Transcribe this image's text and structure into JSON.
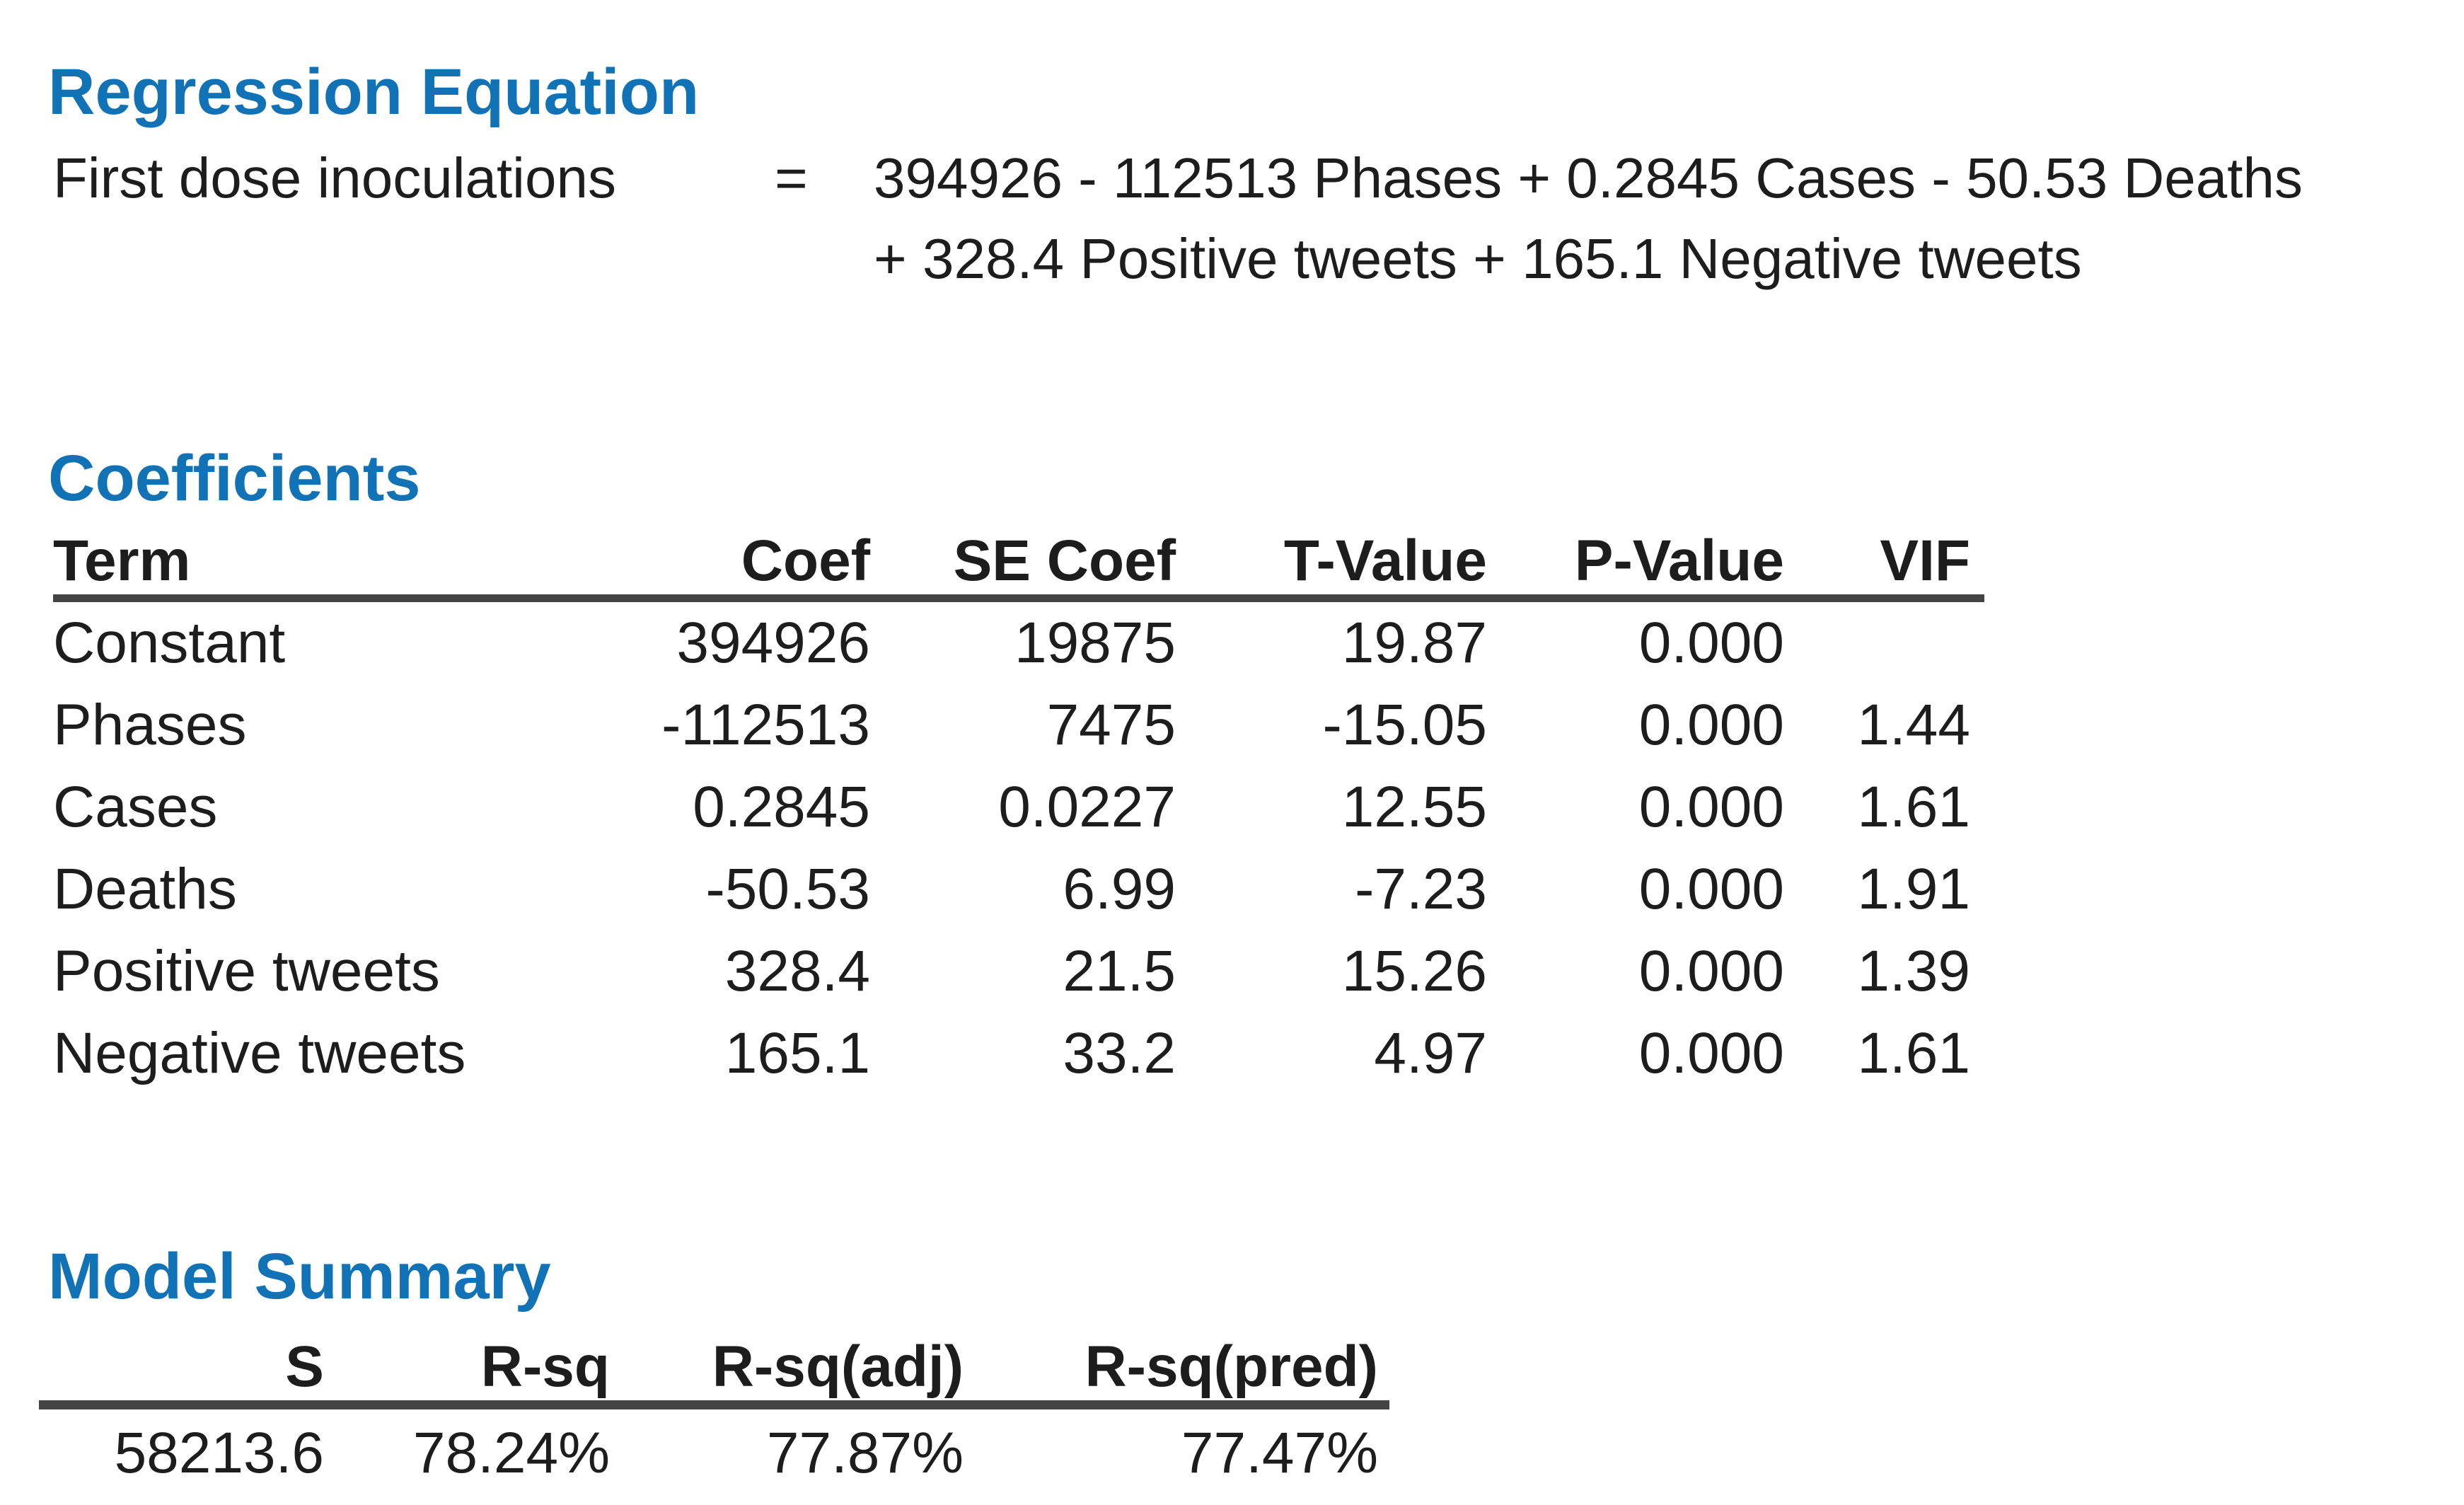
{
  "colors": {
    "heading_blue": "#1173b6",
    "body_text": "#1d1d1d",
    "table_rule": "#444444",
    "background": "#ffffff"
  },
  "regression_equation": {
    "title": "Regression Equation",
    "response_label": "First dose inoculations",
    "equals_sign": "=",
    "line1": "394926 - 112513 Phases + 0.2845 Cases - 50.53 Deaths",
    "line2": "+ 328.4 Positive tweets + 165.1 Negative tweets"
  },
  "coefficients": {
    "title": "Coefficients",
    "columns": [
      "Term",
      "Coef",
      "SE Coef",
      "T-Value",
      "P-Value",
      "VIF"
    ],
    "rows": [
      {
        "term": "Constant",
        "coef": "394926",
        "se_coef": "19875",
        "t_value": "19.87",
        "p_value": "0.000",
        "vif": ""
      },
      {
        "term": "Phases",
        "coef": "-112513",
        "se_coef": "7475",
        "t_value": "-15.05",
        "p_value": "0.000",
        "vif": "1.44"
      },
      {
        "term": "Cases",
        "coef": "0.2845",
        "se_coef": "0.0227",
        "t_value": "12.55",
        "p_value": "0.000",
        "vif": "1.61"
      },
      {
        "term": "Deaths",
        "coef": "-50.53",
        "se_coef": "6.99",
        "t_value": "-7.23",
        "p_value": "0.000",
        "vif": "1.91"
      },
      {
        "term": "Positive tweets",
        "coef": "328.4",
        "se_coef": "21.5",
        "t_value": "15.26",
        "p_value": "0.000",
        "vif": "1.39"
      },
      {
        "term": "Negative tweets",
        "coef": "165.1",
        "se_coef": "33.2",
        "t_value": "4.97",
        "p_value": "0.000",
        "vif": "1.61"
      }
    ]
  },
  "model_summary": {
    "title": "Model Summary",
    "columns": [
      "S",
      "R-sq",
      "R-sq(adj)",
      "R-sq(pred)"
    ],
    "row": {
      "s": "58213.6",
      "r_sq": "78.24%",
      "r_sq_adj": "77.87%",
      "r_sq_pred": "77.47%"
    }
  }
}
